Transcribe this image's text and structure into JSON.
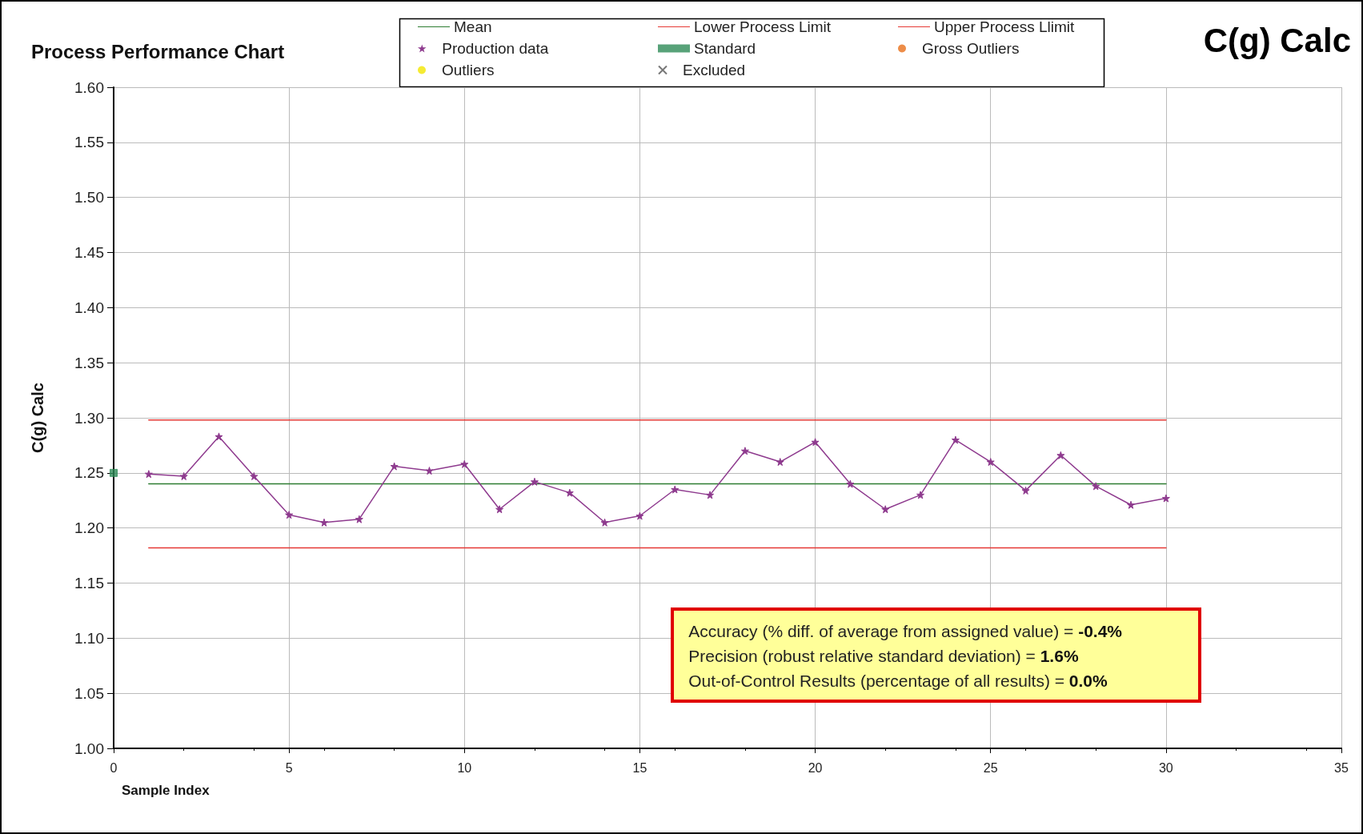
{
  "chart_data": {
    "type": "line",
    "title": "Process Performance Chart",
    "subtitle": "C(g) Calc",
    "xlabel": "Sample Index",
    "ylabel": "C(g) Calc",
    "xlim": [
      0,
      35
    ],
    "xticks": [
      0,
      5,
      10,
      15,
      20,
      25,
      30,
      35
    ],
    "ylim": [
      1.0,
      1.6
    ],
    "yticks": [
      {
        "value": 1.0,
        "label": "1.00"
      },
      {
        "value": 1.05,
        "label": "1.05"
      },
      {
        "value": 1.1,
        "label": "1.10"
      },
      {
        "value": 1.15,
        "label": "1.15"
      },
      {
        "value": 1.2,
        "label": "1.20"
      },
      {
        "value": 1.25,
        "label": "1.25"
      },
      {
        "value": 1.3,
        "label": "1.30"
      },
      {
        "value": 1.35,
        "label": "1.35"
      },
      {
        "value": 1.4,
        "label": "1.40"
      },
      {
        "value": 1.45,
        "label": "1.45"
      },
      {
        "value": 1.5,
        "label": "1.50"
      },
      {
        "value": 1.55,
        "label": "1.55"
      },
      {
        "value": 1.6,
        "label": "1.60"
      }
    ],
    "grid": true,
    "legend": "top",
    "series": [
      {
        "name": "Mean",
        "color": "#2e7d32",
        "marker": "none",
        "x": [
          1,
          30
        ],
        "values": [
          1.24,
          1.24
        ]
      },
      {
        "name": "Lower Process Limit",
        "color": "#e53935",
        "marker": "none",
        "x": [
          1,
          30
        ],
        "values": [
          1.182,
          1.182
        ]
      },
      {
        "name": "Upper Process Llimit",
        "color": "#e53935",
        "marker": "none",
        "x": [
          1,
          30
        ],
        "values": [
          1.298,
          1.298
        ]
      },
      {
        "name": "Production data",
        "color": "#8e3a8e",
        "marker": "star",
        "x": [
          1,
          2,
          3,
          4,
          5,
          6,
          7,
          8,
          9,
          10,
          11,
          12,
          13,
          14,
          15,
          16,
          17,
          18,
          19,
          20,
          21,
          22,
          23,
          24,
          25,
          26,
          27,
          28,
          29,
          30
        ],
        "values": [
          1.249,
          1.247,
          1.283,
          1.247,
          1.212,
          1.205,
          1.208,
          1.256,
          1.252,
          1.258,
          1.217,
          1.242,
          1.232,
          1.205,
          1.211,
          1.235,
          1.23,
          1.27,
          1.26,
          1.278,
          1.24,
          1.217,
          1.23,
          1.28,
          1.26,
          1.234,
          1.266,
          1.238,
          1.221,
          1.227
        ]
      },
      {
        "name": "Standard",
        "type": "scatter",
        "color": "#2e8b57",
        "marker": "square",
        "x": [
          0
        ],
        "values": [
          1.25
        ]
      },
      {
        "name": "Gross Outliers",
        "type": "scatter",
        "color": "#e8701a",
        "marker": "circle"
      },
      {
        "name": "Outliers",
        "type": "scatter",
        "color": "#f2e600",
        "marker": "circle"
      },
      {
        "name": "Excluded",
        "type": "scatter",
        "color": "#555555",
        "marker": "cross"
      }
    ],
    "annotations": [
      "Accuracy (% diff. of average from assigned value) = -0.4%",
      "Precision (robust relative standard deviation) = 1.6%",
      "Out-of-Control Results (percentage of all results) = 0.0%"
    ]
  }
}
